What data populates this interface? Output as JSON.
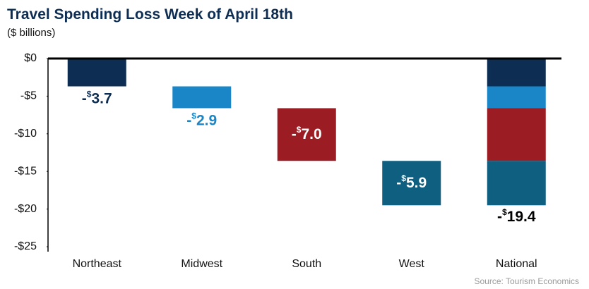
{
  "chart_data": {
    "type": "waterfall",
    "title": "Travel Spending Loss Week of April 18th",
    "subtitle": "($ billions)",
    "source": "Source: Tourism Economics",
    "categories": [
      "Northeast",
      "Midwest",
      "South",
      "West",
      "National"
    ],
    "values": [
      -3.7,
      -2.9,
      -7.0,
      -5.9,
      -19.4
    ],
    "value_labels": [
      "-$3.7",
      "-$2.9",
      "-$7.0",
      "-$5.9",
      "-$19.4"
    ],
    "colors": [
      "#0d2d52",
      "#1a86c8",
      "#9b1c22",
      "#0e5f80"
    ],
    "ylim": [
      -25,
      0
    ],
    "yticks": [
      {
        "value": 0,
        "label": "$0"
      },
      {
        "value": -5,
        "label": "-$5"
      },
      {
        "value": -10,
        "label": "-$10"
      },
      {
        "value": -15,
        "label": "-$15"
      },
      {
        "value": -20,
        "label": "-$20"
      },
      {
        "value": -25,
        "label": "-$25"
      }
    ]
  }
}
